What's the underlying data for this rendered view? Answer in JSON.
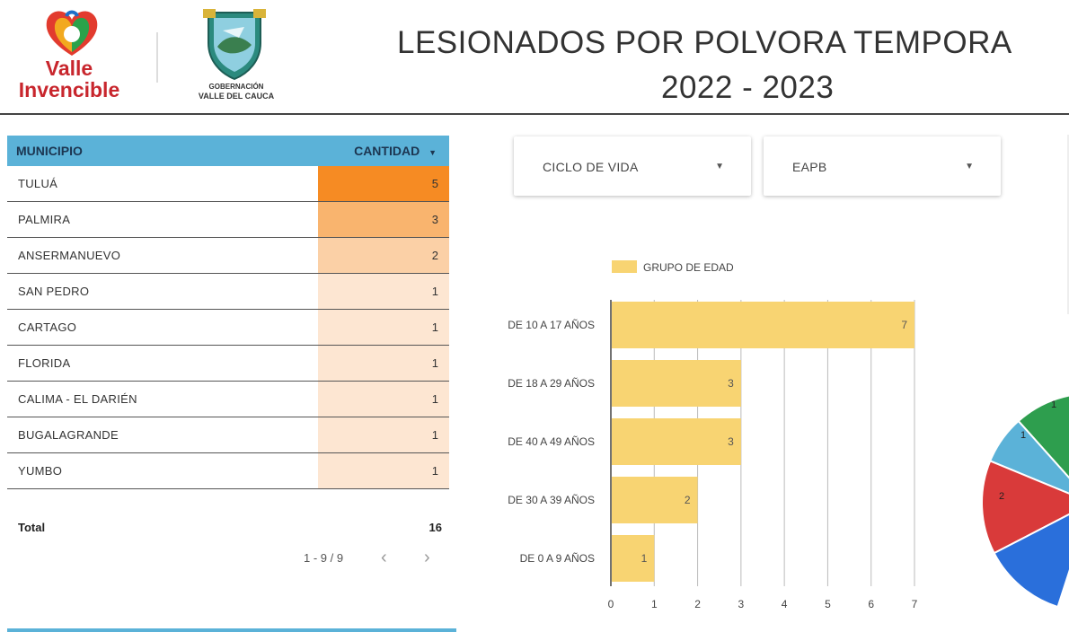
{
  "header": {
    "logo1_line1": "Valle",
    "logo1_line2": "Invencible",
    "logo2_line1": "GOBERNACIÓN",
    "logo2_line2": "VALLE DEL CAUCA",
    "title": "LESIONADOS POR POLVORA TEMPORA",
    "subtitle": "2022 - 2023"
  },
  "table": {
    "col_municipio": "MUNICIPIO",
    "col_cantidad": "CANTIDAD",
    "sort_icon": "triangle-down-icon",
    "rows": [
      {
        "name": "TULUÁ",
        "value": "5"
      },
      {
        "name": "PALMIRA",
        "value": "3"
      },
      {
        "name": "ANSERMANUEVO",
        "value": "2"
      },
      {
        "name": "SAN PEDRO",
        "value": "1"
      },
      {
        "name": "CARTAGO",
        "value": "1"
      },
      {
        "name": "FLORIDA",
        "value": "1"
      },
      {
        "name": "CALIMA - EL DARIÉN",
        "value": "1"
      },
      {
        "name": "BUGALAGRANDE",
        "value": "1"
      },
      {
        "name": "YUMBO",
        "value": "1"
      }
    ],
    "total_label": "Total",
    "total_value": "16",
    "pager_text": "1 - 9 / 9",
    "prev_icon": "chevron-left-icon",
    "next_icon": "chevron-right-icon"
  },
  "filters": {
    "ciclo_label": "CICLO DE VIDA",
    "eapb_label": "EAPB"
  },
  "colors": {
    "header_blue": "#5bb2d8",
    "heat_high": "#f68b23",
    "heat_mid": "#f9b46e",
    "heat_low2": "#fbd0a6",
    "heat_low": "#fde6d2",
    "bar": "#f8d472",
    "pie_green": "#2e9e4e",
    "pie_lightblue": "#5bb2d8",
    "pie_red": "#d93a3a",
    "pie_blue": "#2a6fdb"
  },
  "chart_data": {
    "type": "bar",
    "orientation": "horizontal",
    "legend": "GRUPO DE EDAD",
    "categories": [
      "DE 10 A 17 AÑOS",
      "DE 18 A 29 AÑOS",
      "DE 40 A 49 AÑOS",
      "DE 30 A 39 AÑOS",
      "DE 0 A 9 AÑOS"
    ],
    "series": [
      {
        "name": "GRUPO DE EDAD",
        "values": [
          7,
          3,
          3,
          2,
          1
        ]
      }
    ],
    "xlim": [
      0,
      7
    ],
    "xticks": [
      0,
      1,
      2,
      3,
      4,
      5,
      6,
      7
    ],
    "grid": true,
    "legend_position": "top-left"
  },
  "pie_data": {
    "type": "pie",
    "visible_labels": [
      "1",
      "1",
      "2"
    ]
  }
}
